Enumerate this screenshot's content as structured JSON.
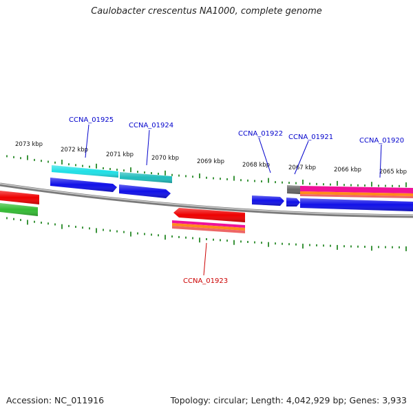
{
  "title": "Caulobacter crescentus NA1000, complete genome",
  "footer": {
    "accession": "Accession: NC_011916",
    "summary": "Topology: circular; Length: 4,042,929 bp; Genes: 3,933"
  },
  "colors": {
    "backbone": "#7f7f7f",
    "tick": "#0a7a0a",
    "label_plus": "#0000cc",
    "label_minus": "#cc0000",
    "cyan": "#1fe0e6",
    "teal": "#1fbcbc",
    "blue": "#1010e8",
    "red": "#ee0000",
    "green": "#33bb33",
    "magenta": "#ee1199",
    "orange": "#ff8a1c",
    "gray": "#666666"
  },
  "scale_labels": [
    "2073 kbp",
    "2072 kbp",
    "2071 kbp",
    "2070 kbp",
    "2069 kbp",
    "2068 kbp",
    "2067 kbp",
    "2066 kbp",
    "2065 kbp"
  ],
  "gene_labels": [
    {
      "text": "CCNA_01925",
      "strand": "plus"
    },
    {
      "text": "CCNA_01924",
      "strand": "plus"
    },
    {
      "text": "CCNA_01922",
      "strand": "plus"
    },
    {
      "text": "CCNA_01921",
      "strand": "plus"
    },
    {
      "text": "CCNA_01920",
      "strand": "plus"
    },
    {
      "text": "CCNA_01923",
      "strand": "minus"
    }
  ]
}
